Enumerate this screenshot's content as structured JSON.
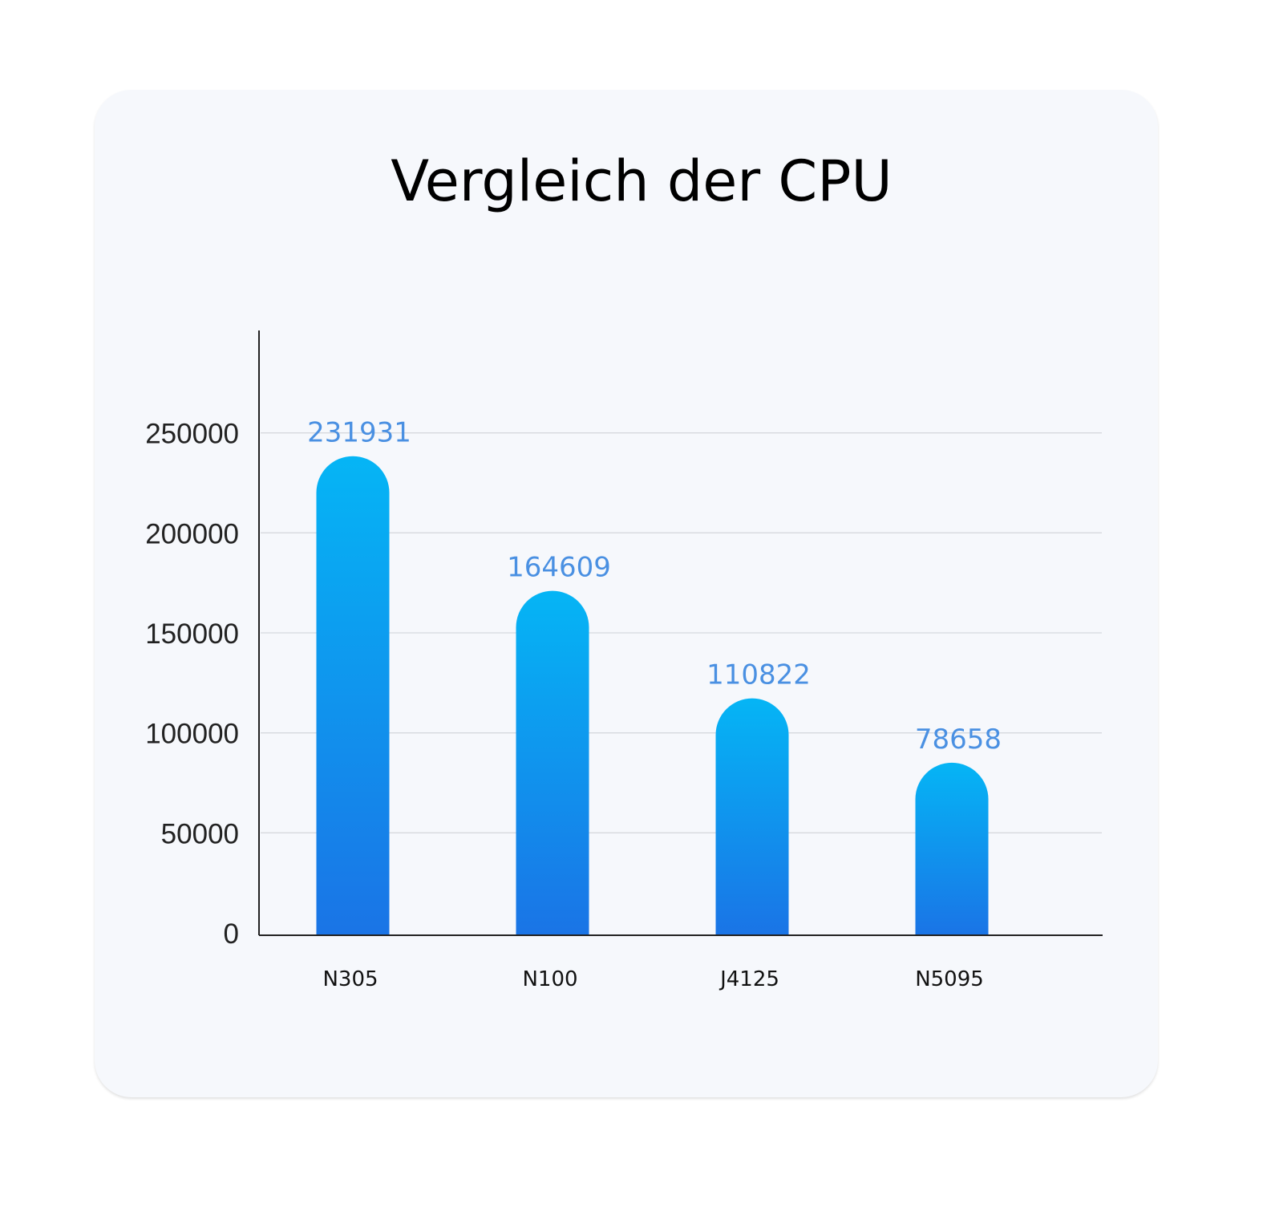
{
  "chart_data": {
    "type": "bar",
    "title": "Vergleich der CPU",
    "xlabel": "",
    "ylabel": "",
    "categories": [
      "N305",
      "N100",
      "J4125",
      "N5095"
    ],
    "values": [
      231931,
      164609,
      110822,
      78658
    ],
    "data_labels": [
      "231931",
      "164609",
      "110822",
      "78658"
    ],
    "ylim": [
      0,
      300000
    ],
    "yticks": [
      0,
      50000,
      100000,
      150000,
      200000,
      250000
    ],
    "ytick_labels": [
      "0",
      "50000",
      "100000",
      "150000",
      "200000",
      "250000"
    ],
    "grid": true,
    "legend": "none",
    "colors": {
      "bar_top": "#05b5f5",
      "bar_bottom": "#1a74e6",
      "data_label": "#4a90e2",
      "grid": "#d6d9de",
      "axis": "#222222"
    }
  }
}
